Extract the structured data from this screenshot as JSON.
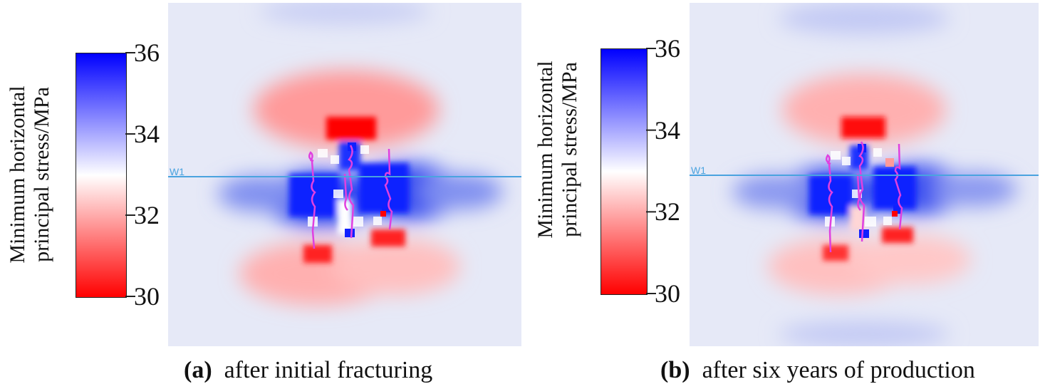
{
  "chart_data": [
    {
      "type": "heatmap",
      "panel_tag": "(a)",
      "caption": "after initial fracturing",
      "well_label": "W1",
      "colorbar": {
        "title_lines": [
          "Minimum horizontal",
          "principal stress/MPa"
        ],
        "min": 30,
        "max": 36,
        "ticks": [
          36,
          34,
          32,
          30
        ],
        "color_low": "#ff0000",
        "color_mid": "#ffffff",
        "color_high": "#0000ff"
      }
    },
    {
      "type": "heatmap",
      "panel_tag": "(b)",
      "caption": "after six years of production",
      "well_label": "W1",
      "colorbar": {
        "title_lines": [
          "Minimum horizontal",
          "principal stress/MPa"
        ],
        "min": 30,
        "max": 36,
        "ticks": [
          36,
          34,
          32,
          30
        ],
        "color_low": "#ff0000",
        "color_mid": "#ffffff",
        "color_high": "#0000ff"
      }
    }
  ],
  "colors": {
    "well_line": "#4aa3df",
    "fracture": "#e040e0",
    "background_stress": "#e6e9f7"
  }
}
